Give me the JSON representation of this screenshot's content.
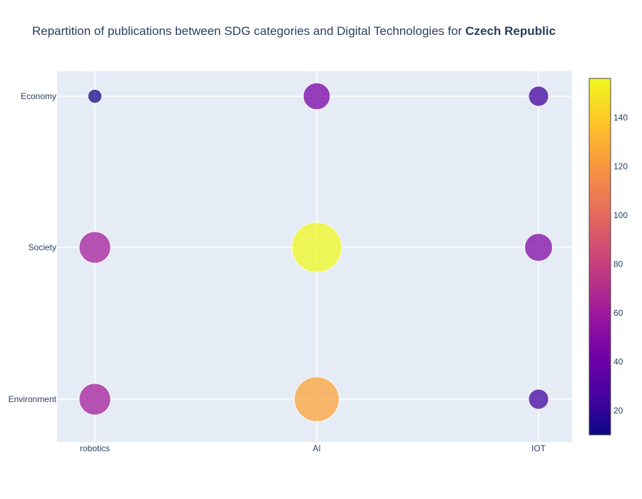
{
  "title_prefix": "Repartition of publications between SDG categories and Digital Technologies for ",
  "title_country": "Czech Republic",
  "chart_data": {
    "type": "scatter",
    "subtype": "bubble",
    "x_categories": [
      "robotics",
      "AI",
      "IOT"
    ],
    "y_categories": [
      "Environment",
      "Society",
      "Economy"
    ],
    "points": [
      {
        "x": "robotics",
        "y": "Economy",
        "value": 12
      },
      {
        "x": "AI",
        "y": "Economy",
        "value": 45
      },
      {
        "x": "IOT",
        "y": "Economy",
        "value": 25
      },
      {
        "x": "robotics",
        "y": "Society",
        "value": 62
      },
      {
        "x": "AI",
        "y": "Society",
        "value": 156
      },
      {
        "x": "IOT",
        "y": "Society",
        "value": 48
      },
      {
        "x": "robotics",
        "y": "Environment",
        "value": 62
      },
      {
        "x": "AI",
        "y": "Environment",
        "value": 125
      },
      {
        "x": "IOT",
        "y": "Environment",
        "value": 25
      }
    ],
    "colorscale": {
      "name": "Plasma",
      "min": 10,
      "max": 156,
      "ticks": [
        20,
        40,
        60,
        80,
        100,
        120,
        140
      ],
      "stops": [
        "#0d0887",
        "#46039f",
        "#7201a8",
        "#9c179e",
        "#bd3786",
        "#d8576b",
        "#ed7953",
        "#fb9f3a",
        "#fdca26",
        "#f0f921"
      ]
    },
    "plot_background": "#e5ecf6",
    "grid": true,
    "legend": "colorbar-right"
  }
}
